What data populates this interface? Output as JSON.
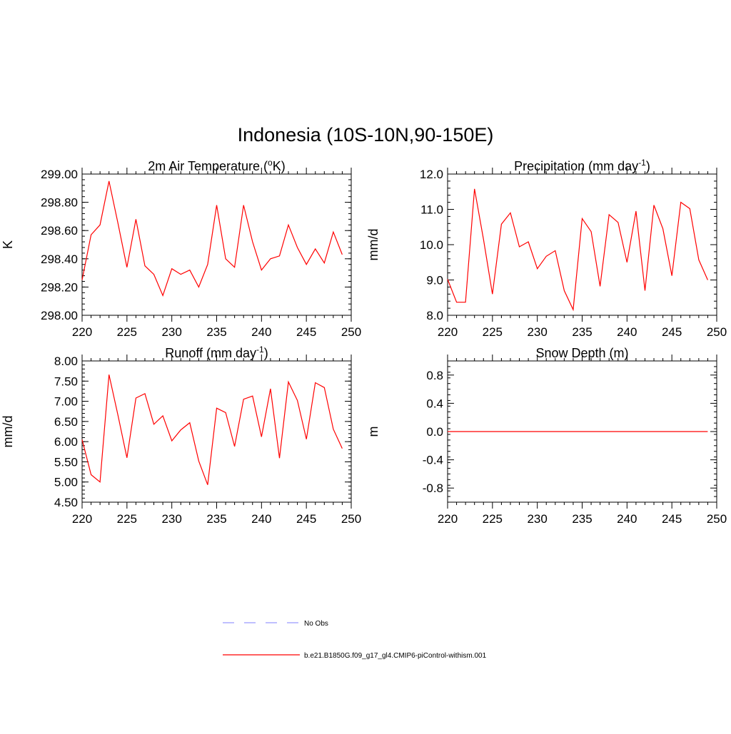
{
  "figure": {
    "title": "Indonesia (10S-10N,90-150E)"
  },
  "chart_data": [
    {
      "type": "line",
      "title": "2m Air Temperature (",
      "title_sup": "o",
      "title_post": "K)",
      "ylabel": "K",
      "xlabel": "",
      "xlim": [
        220,
        250
      ],
      "xticks": [
        "220",
        "225",
        "230",
        "235",
        "240",
        "245",
        "250"
      ],
      "ylim": [
        298.0,
        299.0
      ],
      "yticks": [
        "298.00",
        "298.20",
        "298.40",
        "298.60",
        "298.80",
        "299.00"
      ],
      "series": [
        {
          "color": "#ff0000",
          "x": [
            220,
            221,
            222,
            223,
            224,
            225,
            226,
            227,
            228,
            229,
            230,
            231,
            232,
            233,
            234,
            235,
            236,
            237,
            238,
            239,
            240,
            241,
            242,
            243,
            244,
            245,
            246,
            247,
            248,
            249
          ],
          "values": [
            298.25,
            298.57,
            298.64,
            298.95,
            298.65,
            298.34,
            298.68,
            298.35,
            298.29,
            298.14,
            298.33,
            298.29,
            298.32,
            298.2,
            298.36,
            298.78,
            298.4,
            298.34,
            298.78,
            298.52,
            298.32,
            298.4,
            298.42,
            298.64,
            298.48,
            298.36,
            298.47,
            298.37,
            298.59,
            298.43
          ]
        }
      ]
    },
    {
      "type": "line",
      "title": "Precipitation (mm day",
      "title_sup": "-1",
      "title_post": ")",
      "ylabel": "mm/d",
      "xlabel": "",
      "xlim": [
        220,
        250
      ],
      "xticks": [
        "220",
        "225",
        "230",
        "235",
        "240",
        "245",
        "250"
      ],
      "ylim": [
        8.0,
        12.0
      ],
      "yticks": [
        "8.0",
        "9.0",
        "10.0",
        "11.0",
        "12.0"
      ],
      "series": [
        {
          "color": "#ff0000",
          "x": [
            220,
            221,
            222,
            223,
            224,
            225,
            226,
            227,
            228,
            229,
            230,
            231,
            232,
            233,
            234,
            235,
            236,
            237,
            238,
            239,
            240,
            241,
            242,
            243,
            244,
            245,
            246,
            247,
            248,
            249
          ],
          "values": [
            9.02,
            8.37,
            8.37,
            11.58,
            10.15,
            8.6,
            10.58,
            10.9,
            9.94,
            10.08,
            9.32,
            9.67,
            9.83,
            8.7,
            8.16,
            10.74,
            10.37,
            8.82,
            10.85,
            10.63,
            9.5,
            10.95,
            8.7,
            11.12,
            10.45,
            9.12,
            11.2,
            11.02,
            9.57,
            9.0
          ]
        }
      ]
    },
    {
      "type": "line",
      "title": "Runoff (mm day",
      "title_sup": "-1",
      "title_post": ")",
      "ylabel": "mm/d",
      "xlabel": "",
      "xlim": [
        220,
        250
      ],
      "xticks": [
        "220",
        "225",
        "230",
        "235",
        "240",
        "245",
        "250"
      ],
      "ylim": [
        4.5,
        8.0
      ],
      "yticks": [
        "4.50",
        "5.00",
        "5.50",
        "6.00",
        "6.50",
        "7.00",
        "7.50",
        "8.00"
      ],
      "series": [
        {
          "color": "#ff0000",
          "x": [
            220,
            221,
            222,
            223,
            224,
            225,
            226,
            227,
            228,
            229,
            230,
            231,
            232,
            233,
            234,
            235,
            236,
            237,
            238,
            239,
            240,
            241,
            242,
            243,
            244,
            245,
            246,
            247,
            248,
            249
          ],
          "values": [
            6.05,
            5.18,
            5.0,
            7.66,
            6.65,
            5.6,
            7.08,
            7.19,
            6.43,
            6.64,
            6.02,
            6.29,
            6.47,
            5.52,
            4.93,
            6.83,
            6.72,
            5.88,
            7.05,
            7.13,
            6.12,
            7.31,
            5.59,
            7.48,
            7.02,
            6.06,
            7.46,
            7.34,
            6.31,
            5.83
          ]
        }
      ]
    },
    {
      "type": "line",
      "title": "Snow Depth (m)",
      "title_sup": "",
      "title_post": "",
      "ylabel": "m",
      "xlabel": "",
      "xlim": [
        220,
        250
      ],
      "xticks": [
        "220",
        "225",
        "230",
        "235",
        "240",
        "245",
        "250"
      ],
      "ylim": [
        -1.0,
        1.0
      ],
      "yticks": [
        "-0.8",
        "-0.4",
        "0.0",
        "0.4",
        "0.8"
      ],
      "series": [
        {
          "color": "#ff0000",
          "x": [
            220,
            221,
            222,
            223,
            224,
            225,
            226,
            227,
            228,
            229,
            230,
            231,
            232,
            233,
            234,
            235,
            236,
            237,
            238,
            239,
            240,
            241,
            242,
            243,
            244,
            245,
            246,
            247,
            248,
            249
          ],
          "values": [
            0,
            0,
            0,
            0,
            0,
            0,
            0,
            0,
            0,
            0,
            0,
            0,
            0,
            0,
            0,
            0,
            0,
            0,
            0,
            0,
            0,
            0,
            0,
            0,
            0,
            0,
            0,
            0,
            0,
            0
          ]
        }
      ]
    }
  ],
  "legend": {
    "items": [
      {
        "label": "No Obs",
        "color": "#9999ff",
        "dash": true
      },
      {
        "label": "b.e21.B1850G.f09_g17_gl4.CMIP6-piControl-withism.001",
        "color": "#ff0000",
        "dash": false
      }
    ]
  }
}
